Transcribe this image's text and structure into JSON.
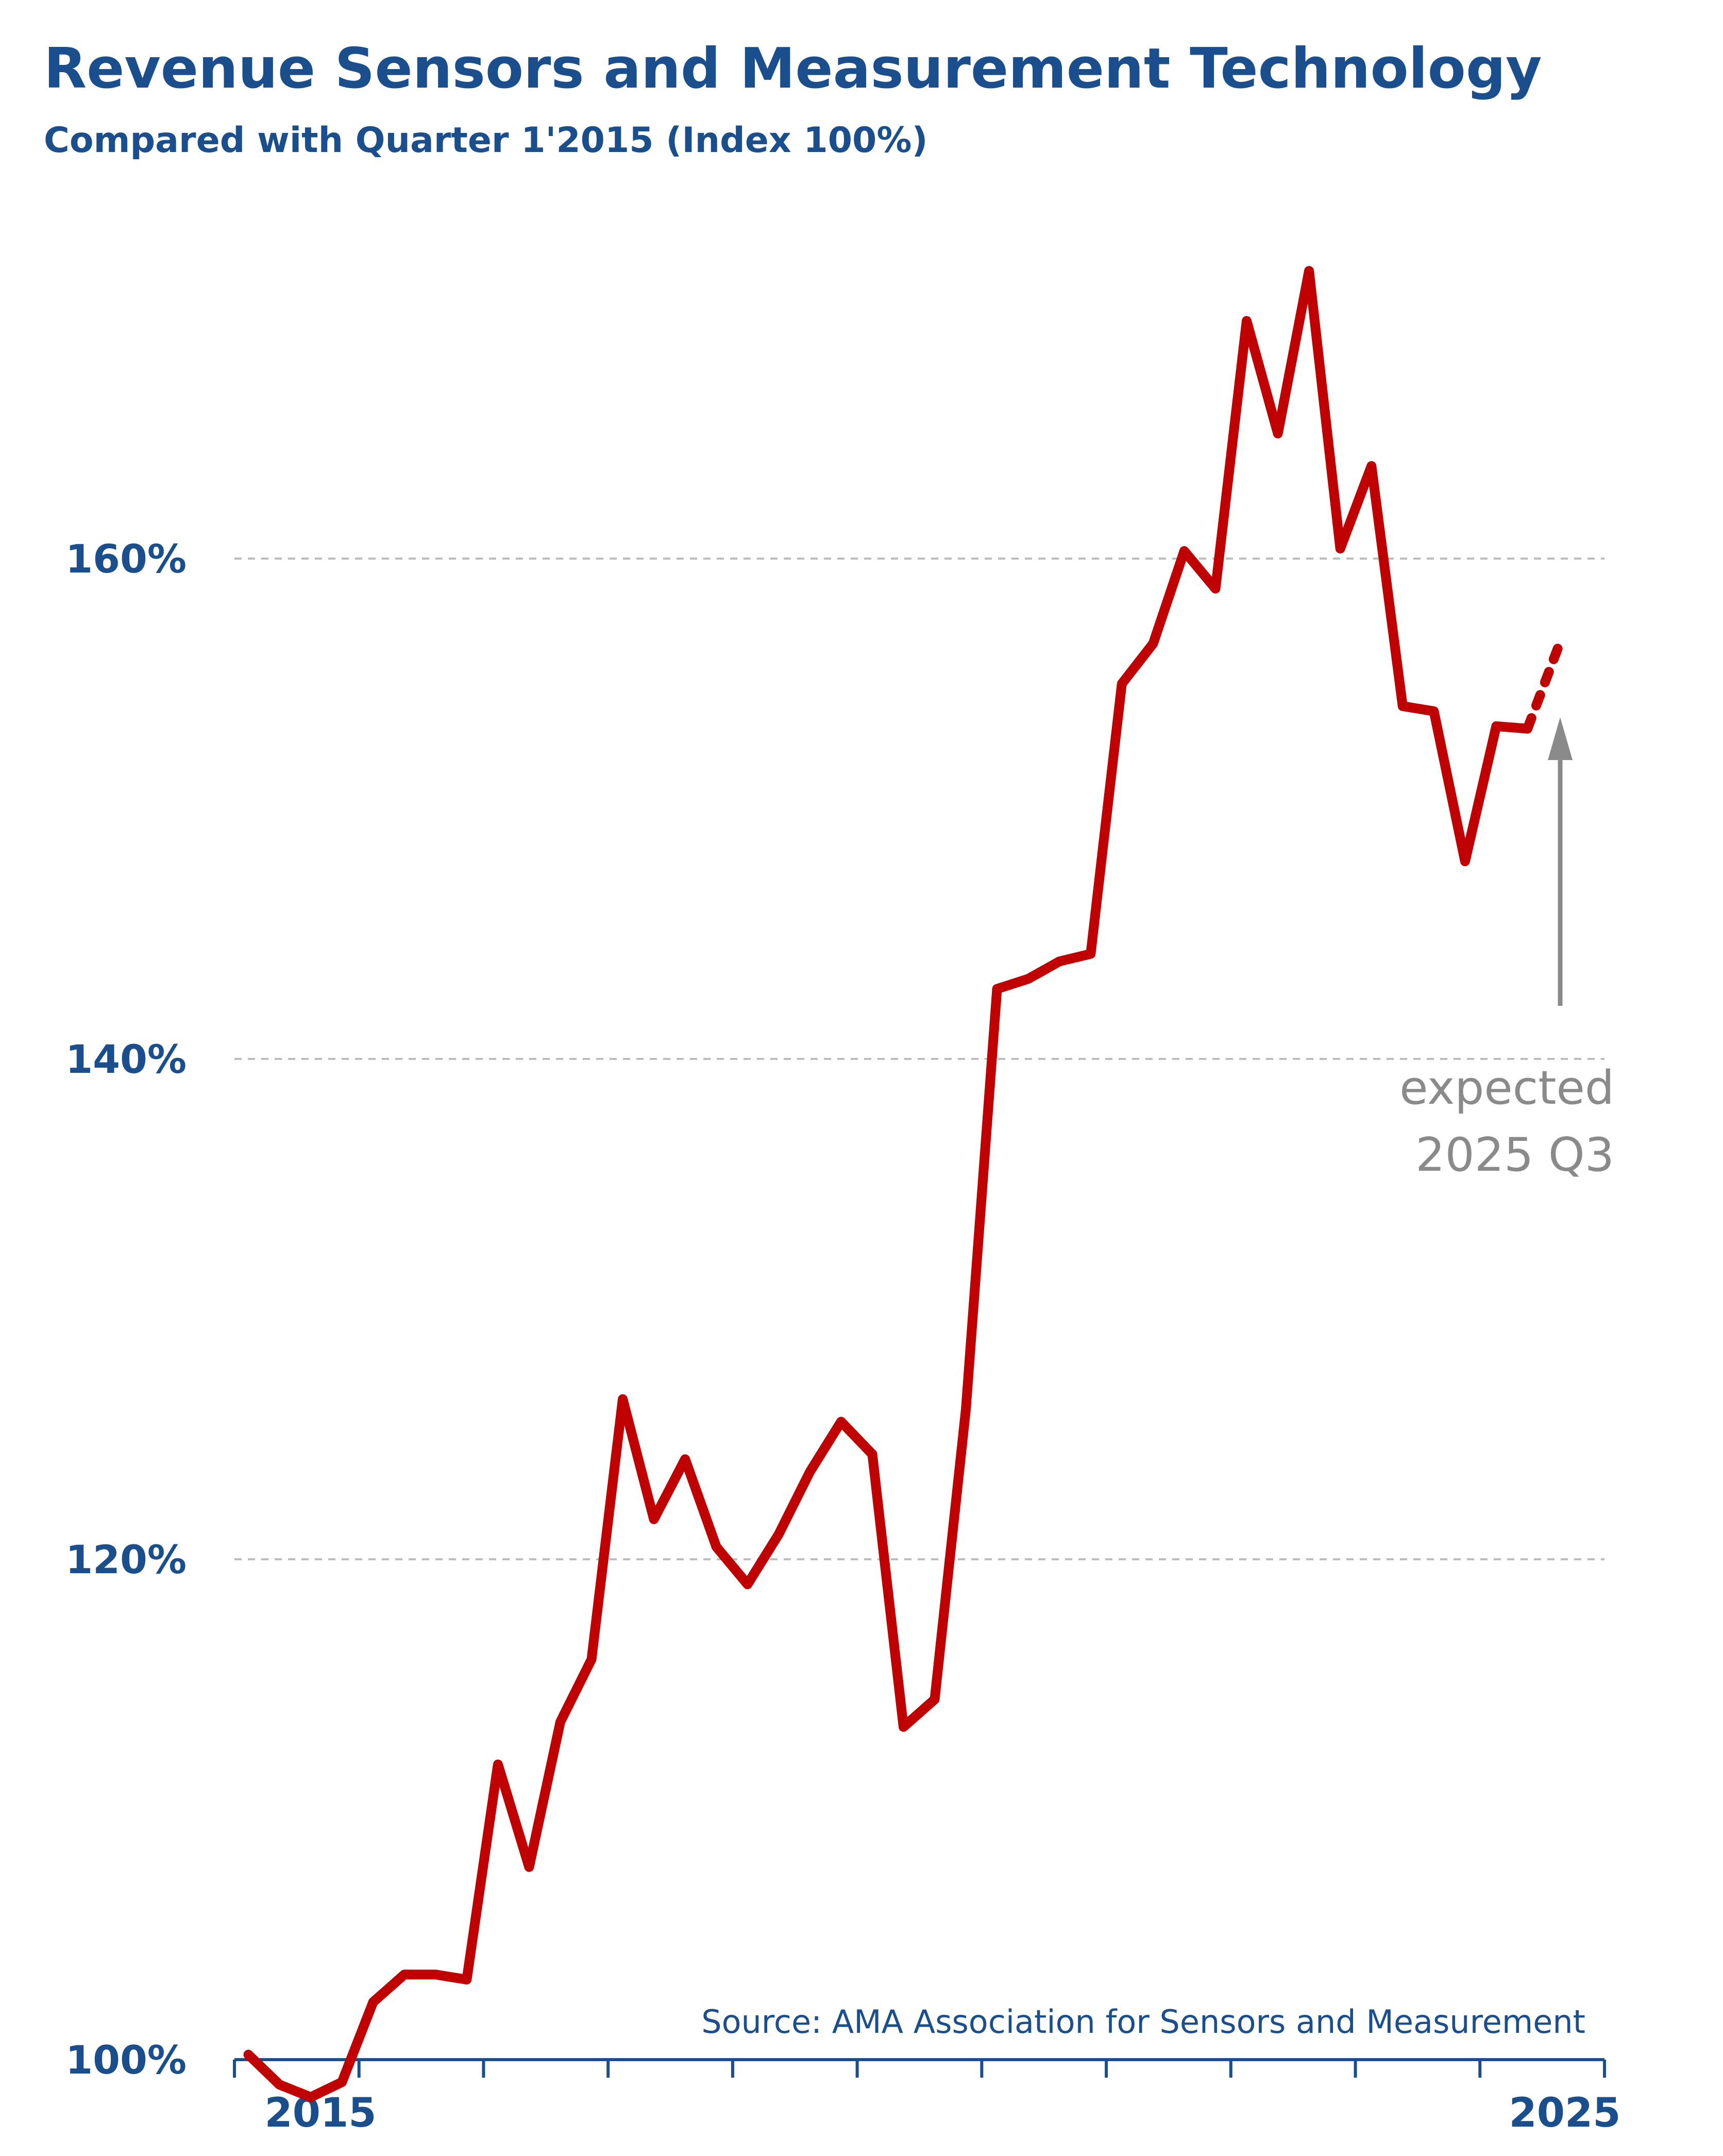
{
  "chart_data": {
    "type": "line",
    "title": "Revenue Sensors and Measurement Technology",
    "subtitle": "Compared with Quarter 1'2015 (Index 100%)",
    "xlabel": "",
    "ylabel": "",
    "x_start": "2015 Q1",
    "x_end": "2025 Q3",
    "x_ticks": [
      "2015",
      "",
      "",
      "",
      "",
      "",
      "",
      "",
      "",
      "",
      "",
      "2025"
    ],
    "y_ticks": [
      "100%",
      "120%",
      "140%",
      "160%"
    ],
    "y_tick_values": [
      100,
      120,
      140,
      160
    ],
    "ylim": [
      100,
      173
    ],
    "grid": true,
    "series": [
      {
        "color": "#c00000",
        "x": [
          "2015 Q1",
          "2015 Q2",
          "2015 Q3",
          "2015 Q4",
          "2016 Q1",
          "2016 Q2",
          "2016 Q3",
          "2016 Q4",
          "2017 Q1",
          "2017 Q2",
          "2017 Q3",
          "2017 Q4",
          "2018 Q1",
          "2018 Q2",
          "2018 Q3",
          "2018 Q4",
          "2019 Q1",
          "2019 Q2",
          "2019 Q3",
          "2019 Q4",
          "2020 Q1",
          "2020 Q2",
          "2020 Q3",
          "2020 Q4",
          "2021 Q1",
          "2021 Q2",
          "2021 Q3",
          "2021 Q4",
          "2022 Q1",
          "2022 Q2",
          "2022 Q3",
          "2022 Q4",
          "2023 Q1",
          "2023 Q2",
          "2023 Q3",
          "2023 Q4",
          "2024 Q1",
          "2024 Q2",
          "2024 Q3",
          "2024 Q4",
          "2025 Q1",
          "2025 Q2",
          "2025 Q3"
        ],
        "values": [
          100.2,
          99.0,
          98.5,
          99.1,
          102.3,
          103.4,
          103.4,
          103.2,
          111.8,
          107.7,
          113.5,
          116.0,
          126.4,
          121.6,
          124.0,
          120.5,
          119.0,
          121.0,
          123.5,
          125.5,
          124.2,
          113.3,
          114.4,
          126.0,
          142.8,
          143.2,
          143.9,
          144.2,
          155.0,
          156.6,
          160.3,
          158.8,
          169.5,
          165.0,
          171.5,
          160.4,
          163.7,
          154.1,
          153.9,
          147.9,
          153.3,
          153.2,
          156.5
        ],
        "expected_from_index": 41
      }
    ],
    "annotation": {
      "line1": "expected",
      "line2": "2025 Q3",
      "arrow_color": "#8a8a8a"
    },
    "source": "Source: AMA Association  for Sensors and Measurement"
  }
}
